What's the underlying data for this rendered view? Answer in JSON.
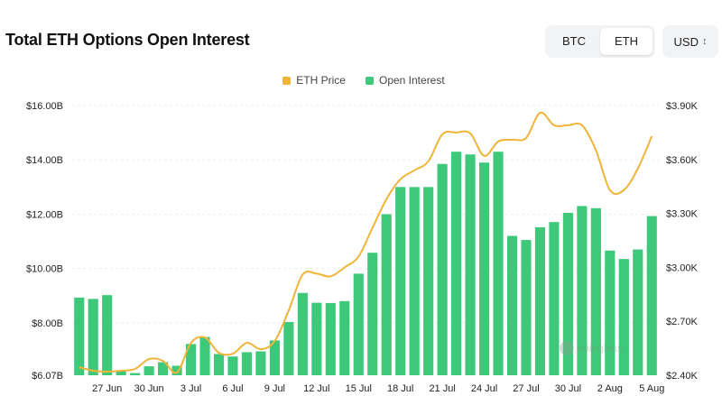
{
  "title": "Total ETH Options Open Interest",
  "asset_toggle": {
    "options": [
      "BTC",
      "ETH"
    ],
    "selected": "ETH"
  },
  "currency": {
    "selected": "USD"
  },
  "watermark": "coinglass",
  "colors": {
    "open_interest": "#3ec97a",
    "eth_price": "#f0b43a",
    "grid": "#eeeeee"
  },
  "chart_data": {
    "type": "bar",
    "title": "Total ETH Options Open Interest",
    "legend": [
      "ETH Price",
      "Open Interest"
    ],
    "legend_position": "top-center",
    "grid": true,
    "x_tick_labels": [
      "27 Jun",
      "30 Jun",
      "3 Jul",
      "6 Jul",
      "9 Jul",
      "12 Jul",
      "15 Jul",
      "18 Jul",
      "21 Jul",
      "24 Jul",
      "27 Jul",
      "30 Jul",
      "2 Aug",
      "5 Aug"
    ],
    "y_left": {
      "ylim": [
        6.07,
        16.0
      ],
      "ticks": [
        6.07,
        8.0,
        10.0,
        12.0,
        14.0,
        16.0
      ],
      "tick_labels": [
        "$6.07B",
        "$8.00B",
        "$10.00B",
        "$12.00B",
        "$14.00B",
        "$16.00B"
      ]
    },
    "y_right": {
      "ylim": [
        2400,
        3900
      ],
      "ticks": [
        2400,
        2700,
        3000,
        3300,
        3600,
        3900
      ],
      "tick_labels": [
        "$2.40K",
        "$2.70K",
        "$3.00K",
        "$3.30K",
        "$3.60K",
        "$3.90K"
      ]
    },
    "categories": [
      "25 Jun",
      "26 Jun",
      "27 Jun",
      "28 Jun",
      "29 Jun",
      "30 Jun",
      "1 Jul",
      "2 Jul",
      "3 Jul",
      "4 Jul",
      "5 Jul",
      "6 Jul",
      "7 Jul",
      "8 Jul",
      "9 Jul",
      "10 Jul",
      "11 Jul",
      "12 Jul",
      "13 Jul",
      "14 Jul",
      "15 Jul",
      "16 Jul",
      "17 Jul",
      "18 Jul",
      "19 Jul",
      "20 Jul",
      "21 Jul",
      "22 Jul",
      "23 Jul",
      "24 Jul",
      "25 Jul",
      "26 Jul",
      "27 Jul",
      "28 Jul",
      "29 Jul",
      "30 Jul",
      "31 Jul",
      "1 Aug",
      "2 Aug",
      "3 Aug",
      "4 Aug",
      "5 Aug"
    ],
    "series": [
      {
        "name": "Open Interest",
        "type": "bar",
        "axis": "left",
        "unit": "B USD",
        "values": [
          8.93,
          8.88,
          9.02,
          6.25,
          6.15,
          6.4,
          6.55,
          6.42,
          7.22,
          7.48,
          6.85,
          6.76,
          6.92,
          6.95,
          7.35,
          8.03,
          9.1,
          8.74,
          8.73,
          8.8,
          9.81,
          10.58,
          12.0,
          13.0,
          13.0,
          13.0,
          13.85,
          14.3,
          14.2,
          13.9,
          14.3,
          11.2,
          11.05,
          11.52,
          11.71,
          12.05,
          12.3,
          12.22,
          10.66,
          10.35,
          10.7,
          11.93
        ]
      },
      {
        "name": "ETH Price",
        "type": "line",
        "axis": "right",
        "unit": "USD",
        "values": [
          2445,
          2425,
          2420,
          2425,
          2435,
          2490,
          2480,
          2415,
          2580,
          2610,
          2525,
          2520,
          2580,
          2545,
          2590,
          2760,
          2960,
          2965,
          2950,
          3000,
          3060,
          3220,
          3380,
          3490,
          3540,
          3590,
          3740,
          3750,
          3745,
          3620,
          3700,
          3710,
          3720,
          3860,
          3790,
          3790,
          3790,
          3650,
          3430,
          3430,
          3550,
          3730
        ]
      }
    ]
  }
}
